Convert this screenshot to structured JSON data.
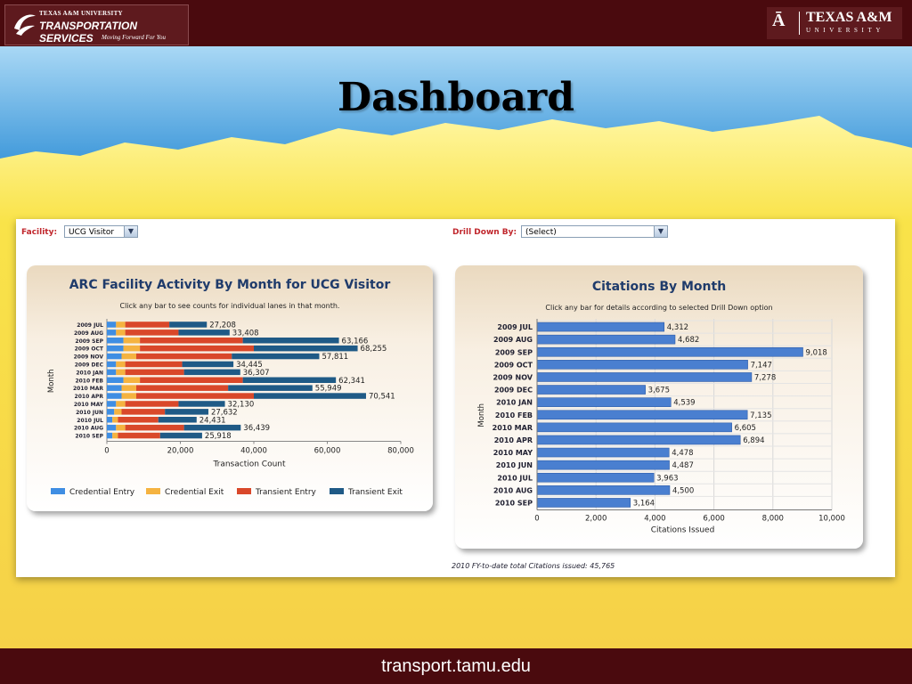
{
  "header": {
    "org_small": "TEXAS A&M UNIVERSITY",
    "org_main": "TRANSPORTATION SERVICES",
    "org_tagline": "Moving Forward For You",
    "univ_name": "TEXAS A&M",
    "univ_sub": "UNIVERSITY"
  },
  "slide_title": "Dashboard",
  "footer_url": "transport.tamu.edu",
  "controls": {
    "facility_label": "Facility:",
    "facility_value": "UCG Visitor",
    "drilldown_label": "Drill Down By:",
    "drilldown_value": "(Select)"
  },
  "colors": {
    "credential_entry": "#3f8ee3",
    "credential_exit": "#f5b340",
    "transient_entry": "#d9482a",
    "transient_exit": "#1f5a86",
    "citation_bar": "#4a7fd0"
  },
  "chart_data": [
    {
      "type": "bar",
      "orientation": "horizontal",
      "stacked": true,
      "title": "ARC Facility Activity By Month for UCG Visitor",
      "subtitle": "Click any bar to see counts for individual lanes in that month.",
      "xlabel": "Transaction Count",
      "ylabel": "Month",
      "xlim": [
        0,
        80000
      ],
      "xticks": [
        "0",
        "20,000",
        "40,000",
        "60,000",
        "80,000"
      ],
      "categories": [
        "2009 JUL",
        "2009 AUG",
        "2009 SEP",
        "2009 OCT",
        "2009 NOV",
        "2009 DEC",
        "2010 JAN",
        "2010 FEB",
        "2010 MAR",
        "2010 APR",
        "2010 MAY",
        "2010 JUN",
        "2010 JUL",
        "2010 AUG",
        "2010 SEP"
      ],
      "totals": [
        27208,
        33408,
        63166,
        68255,
        57811,
        34445,
        36307,
        62341,
        55949,
        70541,
        32130,
        27632,
        24431,
        36439,
        25918
      ],
      "total_labels": [
        "27,208",
        "33,408",
        "63,166",
        "68,255",
        "57,811",
        "34,445",
        "36,307",
        "62,341",
        "55,949",
        "70,541",
        "32,130",
        "27,632",
        "24,431",
        "36,439",
        "25,918"
      ],
      "series": [
        {
          "name": "Credential Entry",
          "values": [
            2500,
            2500,
            4500,
            4500,
            4000,
            2500,
            2500,
            4500,
            4000,
            4000,
            2500,
            2000,
            1500,
            2500,
            1500
          ]
        },
        {
          "name": "Credential Exit",
          "values": [
            2500,
            2500,
            4500,
            4500,
            4000,
            2500,
            2500,
            4500,
            4000,
            4000,
            2500,
            2000,
            1500,
            2500,
            1500
          ]
        },
        {
          "name": "Transient Entry",
          "values": [
            12000,
            14500,
            28000,
            31000,
            26000,
            15500,
            16000,
            28000,
            25000,
            32000,
            14500,
            11800,
            11000,
            16000,
            11500
          ]
        },
        {
          "name": "Transient Exit",
          "values": [
            10208,
            13908,
            26166,
            28255,
            23811,
            13945,
            15307,
            25341,
            22949,
            30541,
            12630,
            11832,
            10431,
            15439,
            11418
          ]
        }
      ],
      "legend_position": "bottom"
    },
    {
      "type": "bar",
      "orientation": "horizontal",
      "title": "Citations By Month",
      "subtitle": "Click any bar for details according to selected Drill Down option",
      "xlabel": "Citations Issued",
      "ylabel": "Month",
      "xlim": [
        0,
        10000
      ],
      "xticks": [
        "0",
        "2,000",
        "4,000",
        "6,000",
        "8,000",
        "10,000"
      ],
      "categories": [
        "2009 JUL",
        "2009 AUG",
        "2009 SEP",
        "2009 OCT",
        "2009 NOV",
        "2009 DEC",
        "2010 JAN",
        "2010 FEB",
        "2010 MAR",
        "2010 APR",
        "2010 MAY",
        "2010 JUN",
        "2010 JUL",
        "2010 AUG",
        "2010 SEP"
      ],
      "values": [
        4312,
        4682,
        9018,
        7147,
        7278,
        3675,
        4539,
        7135,
        6605,
        6894,
        4478,
        4487,
        3963,
        4500,
        3164
      ],
      "value_labels": [
        "4,312",
        "4,682",
        "9,018",
        "7,147",
        "7,278",
        "3,675",
        "4,539",
        "7,135",
        "6,605",
        "6,894",
        "4,478",
        "4,487",
        "3,963",
        "4,500",
        "3,164"
      ],
      "grid": true
    }
  ],
  "note": "2010 FY-to-date total Citations issued: 45,765"
}
